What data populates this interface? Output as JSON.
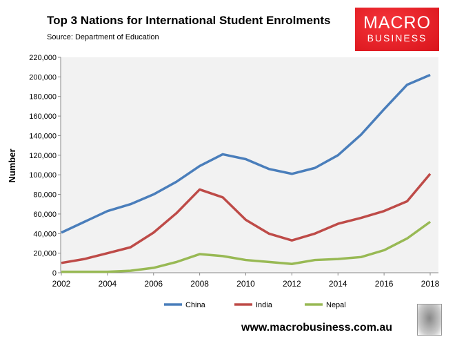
{
  "chart_data": {
    "type": "line",
    "title": "Top 3 Nations for International Student Enrolments",
    "subtitle": "Source: Department of Education",
    "xlabel": "",
    "ylabel": "Number",
    "x": [
      2002,
      2003,
      2004,
      2005,
      2006,
      2007,
      2008,
      2009,
      2010,
      2011,
      2012,
      2013,
      2014,
      2015,
      2016,
      2017,
      2018
    ],
    "xticks": [
      "2002",
      "2004",
      "2006",
      "2008",
      "2010",
      "2012",
      "2014",
      "2016",
      "2018"
    ],
    "yticks": [
      "0",
      "20,000",
      "40,000",
      "60,000",
      "80,000",
      "100,000",
      "120,000",
      "140,000",
      "160,000",
      "180,000",
      "200,000",
      "220,000"
    ],
    "ylim": [
      0,
      220000
    ],
    "grid": false,
    "legend_position": "bottom",
    "series": [
      {
        "name": "China",
        "color": "#4a7ebb",
        "values": [
          41000,
          52000,
          63000,
          70000,
          80000,
          93000,
          109000,
          121000,
          116000,
          106000,
          101000,
          107000,
          120000,
          141000,
          167000,
          192000,
          202000
        ]
      },
      {
        "name": "India",
        "color": "#be4b48",
        "values": [
          10000,
          14000,
          20000,
          26000,
          41000,
          61000,
          85000,
          77000,
          54000,
          40000,
          33000,
          40000,
          50000,
          56000,
          63000,
          73000,
          101000
        ]
      },
      {
        "name": "Nepal",
        "color": "#98b954",
        "values": [
          1000,
          1000,
          1000,
          2000,
          5000,
          11000,
          19000,
          17000,
          13000,
          11000,
          9000,
          13000,
          14000,
          16000,
          23000,
          35000,
          52000
        ]
      }
    ]
  },
  "logo": {
    "line1": "MACRO",
    "line2": "BUSINESS"
  },
  "footer": "www.macrobusiness.com.au"
}
